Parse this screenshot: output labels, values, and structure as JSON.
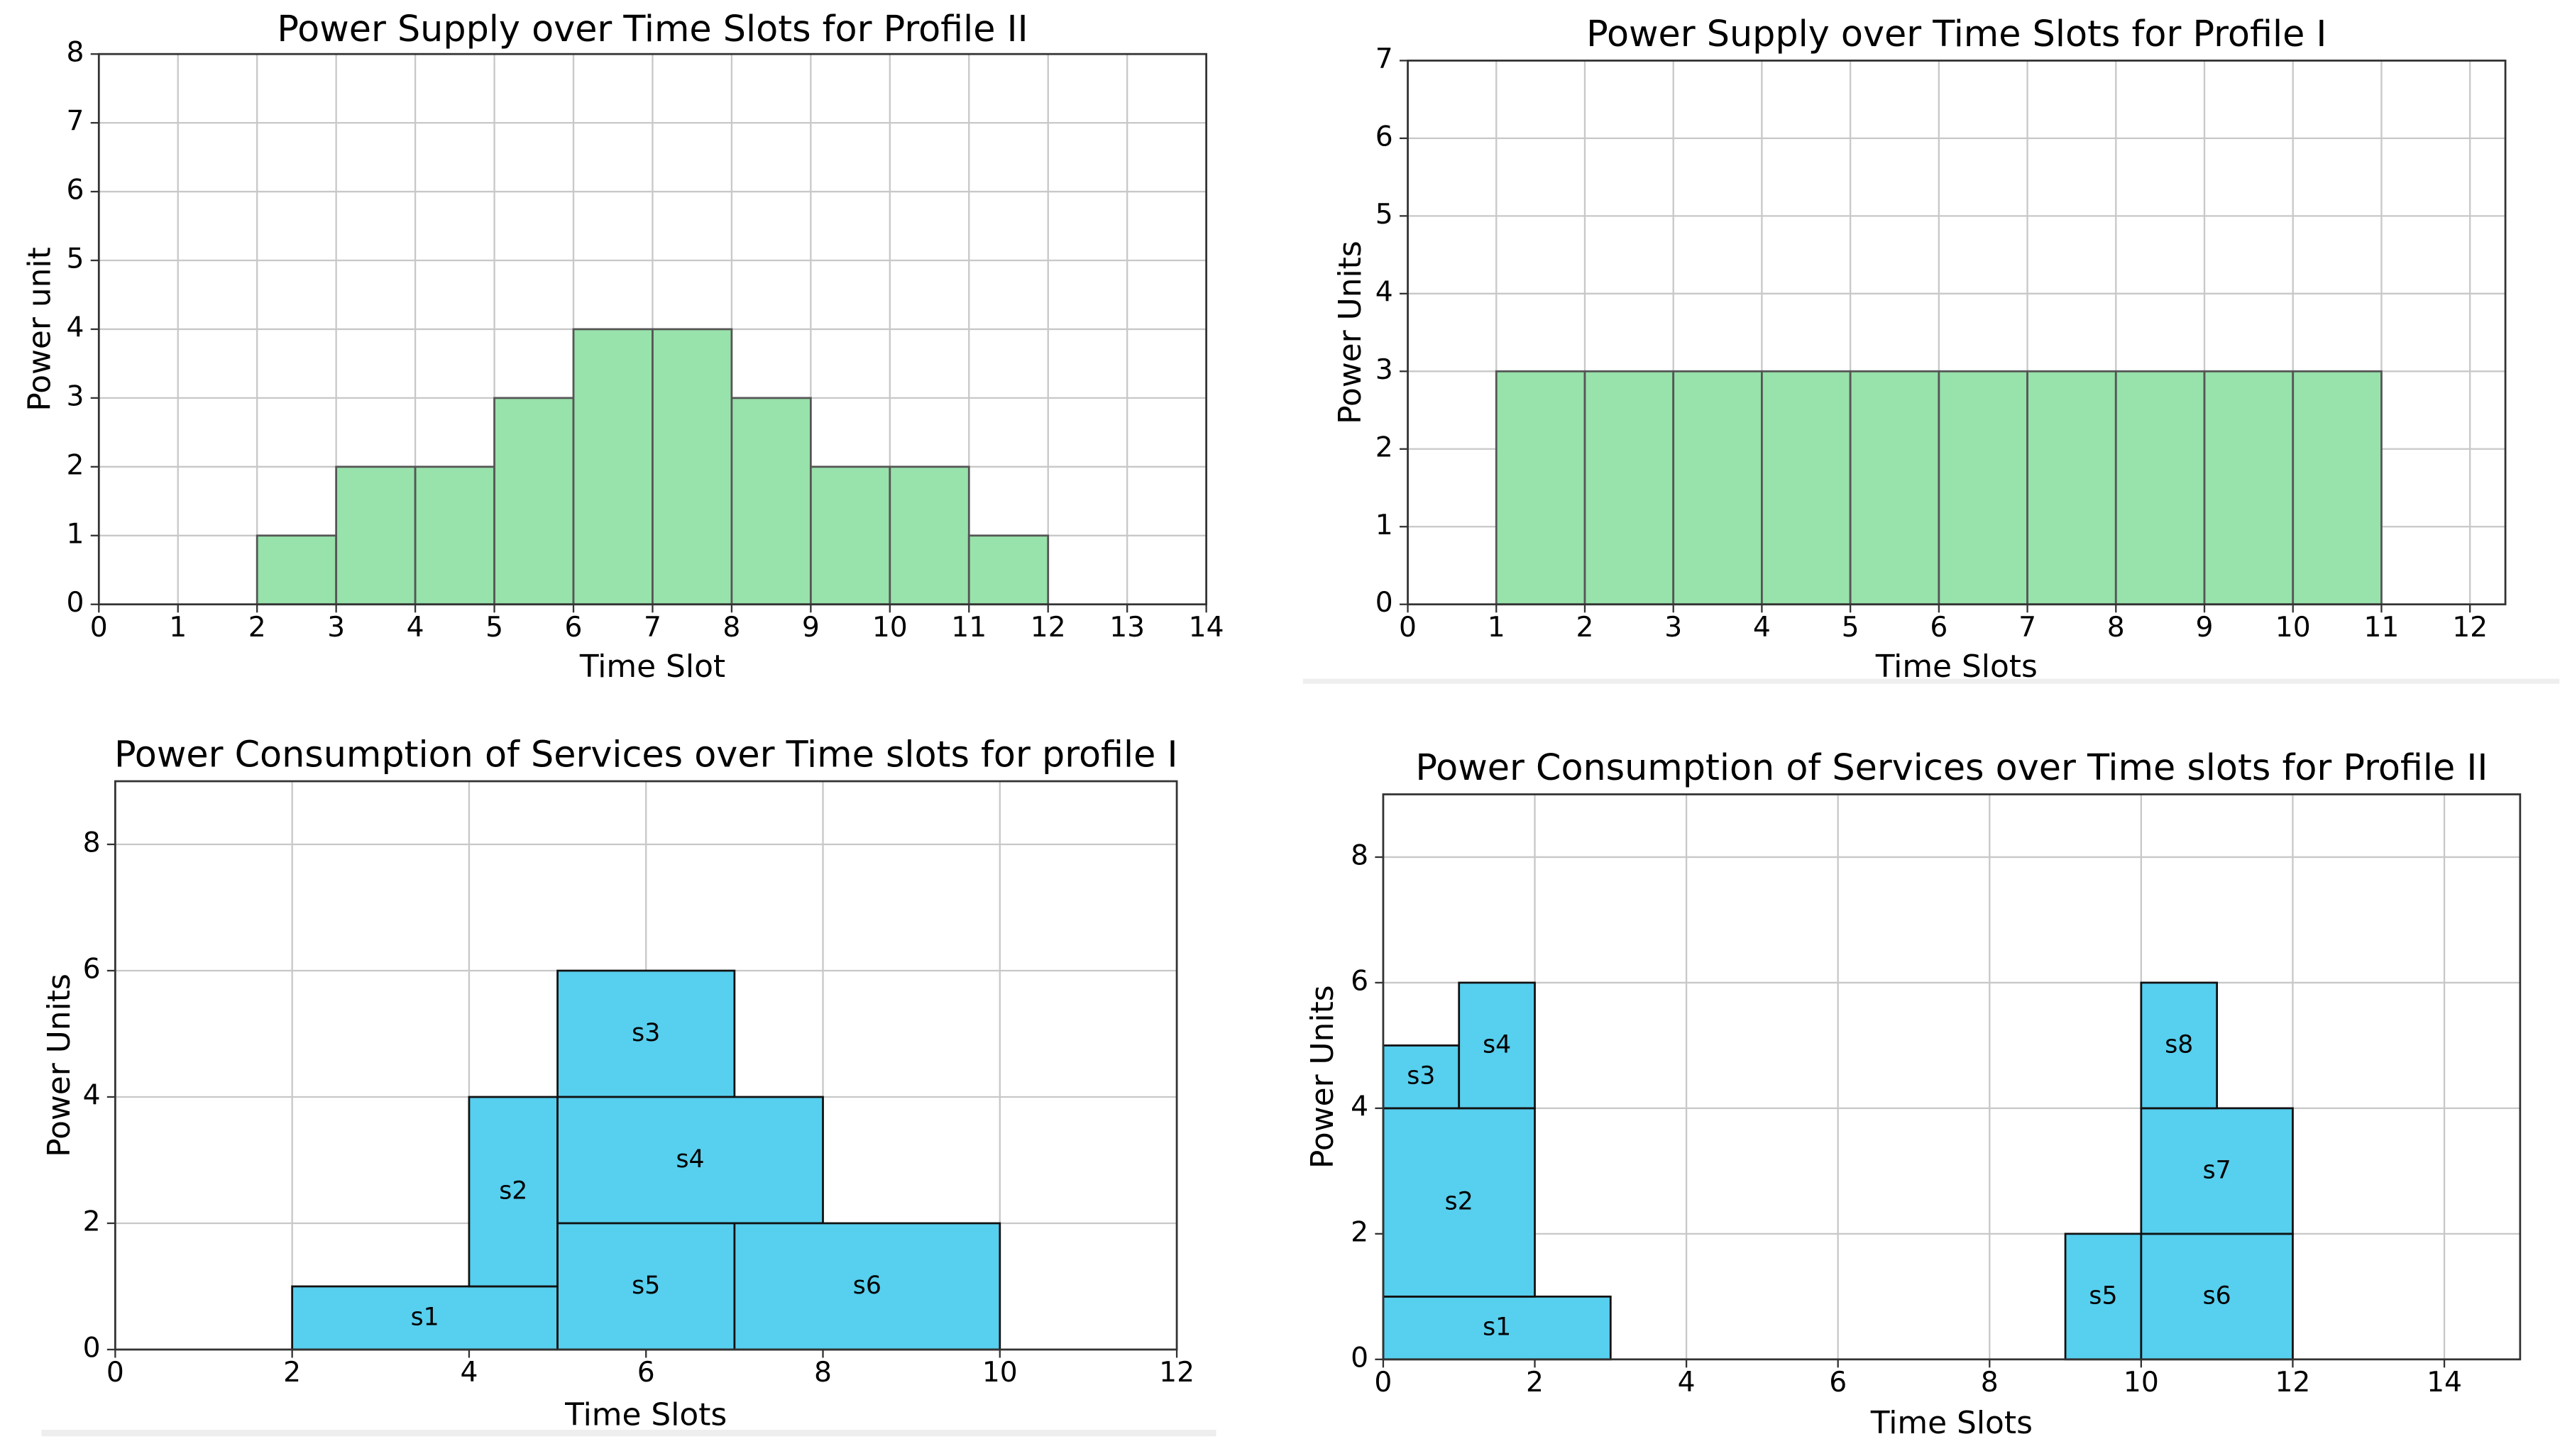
{
  "chart_data": [
    {
      "type": "histogram",
      "title": "Power Supply over Time Slots for Profile II",
      "x_label": "Time Slot",
      "y_label": "Power unit",
      "bins": [
        2,
        3,
        4,
        5,
        6,
        7,
        8,
        9,
        10,
        11,
        12
      ],
      "values": [
        1,
        2,
        2,
        3,
        4,
        4,
        3,
        2,
        2,
        1
      ],
      "color": "#98e2ab",
      "xlim": [
        0,
        14
      ],
      "xticks": [
        0,
        1,
        2,
        3,
        4,
        5,
        6,
        7,
        8,
        9,
        10,
        11,
        12,
        13,
        14
      ],
      "ylim": [
        0,
        8
      ],
      "yticks": [
        0,
        1,
        2,
        3,
        4,
        5,
        6,
        7,
        8
      ],
      "grid": true
    },
    {
      "type": "histogram",
      "title": "Power Supply over Time Slots for Profile I",
      "x_label": "Time Slots",
      "y_label": "Power Units",
      "bins": [
        1,
        2,
        3,
        4,
        5,
        6,
        7,
        8,
        9,
        10,
        11
      ],
      "values": [
        3,
        3,
        3,
        3,
        3,
        3,
        3,
        3,
        3,
        3
      ],
      "color": "#98e2ab",
      "xlim": [
        0,
        12.4
      ],
      "xticks": [
        0,
        1,
        2,
        3,
        4,
        5,
        6,
        7,
        8,
        9,
        10,
        11,
        12
      ],
      "ylim": [
        0,
        7
      ],
      "yticks": [
        0,
        1,
        2,
        3,
        4,
        5,
        6,
        7
      ],
      "grid": true
    },
    {
      "type": "rectangles",
      "title": "Power Consumption of Services over Time slots for profile I",
      "x_label": "Time Slots",
      "y_label": "Power Units",
      "color": "#57cfee",
      "rects": [
        {
          "label": "s1",
          "x": [
            2,
            5
          ],
          "y": [
            0,
            1
          ]
        },
        {
          "label": "s2",
          "x": [
            4,
            5
          ],
          "y": [
            1,
            4
          ]
        },
        {
          "label": "s3",
          "x": [
            5,
            7
          ],
          "y": [
            4,
            6
          ]
        },
        {
          "label": "s4",
          "x": [
            5,
            8
          ],
          "y": [
            2,
            4
          ]
        },
        {
          "label": "s5",
          "x": [
            5,
            7
          ],
          "y": [
            0,
            2
          ]
        },
        {
          "label": "s6",
          "x": [
            7,
            10
          ],
          "y": [
            0,
            2
          ]
        }
      ],
      "xlim": [
        0,
        12
      ],
      "xticks": [
        0,
        2,
        4,
        6,
        8,
        10,
        12
      ],
      "ylim": [
        0,
        9
      ],
      "yticks": [
        0,
        2,
        4,
        6,
        8
      ],
      "grid": true
    },
    {
      "type": "rectangles",
      "title": "Power Consumption of Services over Time slots for Profile II",
      "x_label": "Time Slots",
      "y_label": "Power Units",
      "color": "#57cfee",
      "rects": [
        {
          "label": "s1",
          "x": [
            0,
            3
          ],
          "y": [
            0,
            1
          ]
        },
        {
          "label": "s2",
          "x": [
            0,
            2
          ],
          "y": [
            1,
            4
          ]
        },
        {
          "label": "s3",
          "x": [
            0,
            1
          ],
          "y": [
            4,
            5
          ]
        },
        {
          "label": "s4",
          "x": [
            1,
            2
          ],
          "y": [
            4,
            6
          ]
        },
        {
          "label": "s5",
          "x": [
            9,
            10
          ],
          "y": [
            0,
            2
          ]
        },
        {
          "label": "s6",
          "x": [
            10,
            12
          ],
          "y": [
            0,
            2
          ]
        },
        {
          "label": "s7",
          "x": [
            10,
            12
          ],
          "y": [
            2,
            4
          ]
        },
        {
          "label": "s8",
          "x": [
            10,
            11
          ],
          "y": [
            4,
            6
          ]
        }
      ],
      "xlim": [
        0,
        15
      ],
      "xticks": [
        0,
        2,
        4,
        6,
        8,
        10,
        12,
        14
      ],
      "ylim": [
        0,
        9
      ],
      "yticks": [
        0,
        2,
        4,
        6,
        8
      ],
      "grid": true
    }
  ]
}
